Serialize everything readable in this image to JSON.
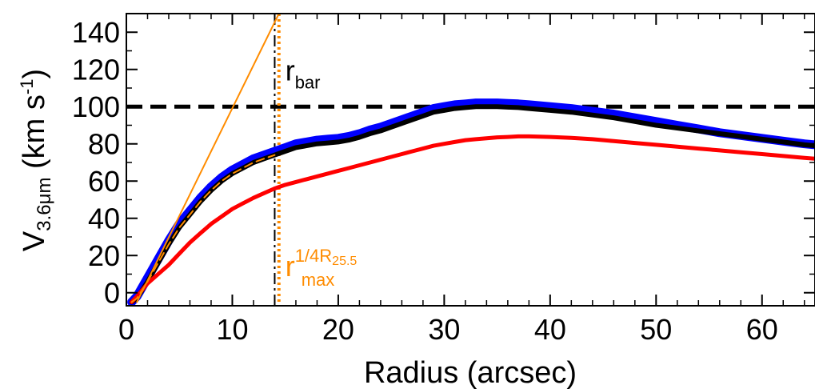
{
  "chart_data": {
    "type": "line",
    "xlabel": "Radius (arcsec)",
    "ylabel": {
      "main": "V",
      "sub": "3.6μm",
      "unit_open": " (km s",
      "unit_sup": "-1",
      "unit_close": ")"
    },
    "xlim": [
      0,
      65
    ],
    "ylim": [
      -7,
      150
    ],
    "xticks": [
      0,
      10,
      20,
      30,
      40,
      50,
      60
    ],
    "yticks": [
      0,
      20,
      40,
      60,
      80,
      100,
      120,
      140
    ],
    "grid": false,
    "series": [
      {
        "color": "#0000ff",
        "style": "solid",
        "points": [
          [
            0.5,
            -5
          ],
          [
            1,
            -2
          ],
          [
            2,
            8
          ],
          [
            3,
            18
          ],
          [
            4,
            28
          ],
          [
            5,
            37
          ],
          [
            6,
            44
          ],
          [
            7,
            51
          ],
          [
            8,
            57
          ],
          [
            9,
            62
          ],
          [
            10,
            66
          ],
          [
            11,
            69
          ],
          [
            12,
            72
          ],
          [
            13,
            74
          ],
          [
            14,
            76
          ],
          [
            15,
            78
          ],
          [
            16,
            80
          ],
          [
            17,
            81
          ],
          [
            18,
            82
          ],
          [
            19,
            82.5
          ],
          [
            20,
            83
          ],
          [
            21,
            84
          ],
          [
            22,
            85.5
          ],
          [
            23,
            87.5
          ],
          [
            24,
            89
          ],
          [
            25,
            91
          ],
          [
            26,
            93
          ],
          [
            27,
            95
          ],
          [
            28,
            97
          ],
          [
            29,
            99
          ],
          [
            30,
            100
          ],
          [
            31,
            101
          ],
          [
            32,
            101.5
          ],
          [
            33,
            102
          ],
          [
            34,
            102
          ],
          [
            35,
            102
          ],
          [
            36,
            101.7
          ],
          [
            37,
            101.5
          ],
          [
            38,
            101
          ],
          [
            40,
            100
          ],
          [
            42,
            99
          ],
          [
            44,
            97.5
          ],
          [
            46,
            96
          ],
          [
            48,
            94
          ],
          [
            50,
            92
          ],
          [
            52,
            90
          ],
          [
            54,
            88
          ],
          [
            56,
            86
          ],
          [
            58,
            84.5
          ],
          [
            60,
            83
          ],
          [
            62,
            81.5
          ],
          [
            64,
            80
          ],
          [
            65,
            79.5
          ]
        ]
      },
      {
        "color": "#000000",
        "style": "solid",
        "points": [
          [
            0.5,
            -5
          ],
          [
            1,
            -3
          ],
          [
            2,
            6
          ],
          [
            3,
            16
          ],
          [
            4,
            26
          ],
          [
            5,
            35
          ],
          [
            6,
            42
          ],
          [
            7,
            49
          ],
          [
            8,
            55
          ],
          [
            9,
            60
          ],
          [
            10,
            64
          ],
          [
            11,
            67
          ],
          [
            12,
            70
          ],
          [
            13,
            72
          ],
          [
            14,
            74
          ],
          [
            15,
            76
          ],
          [
            16,
            78
          ],
          [
            17,
            79
          ],
          [
            18,
            80
          ],
          [
            19,
            80.5
          ],
          [
            20,
            81
          ],
          [
            21,
            82
          ],
          [
            22,
            83.5
          ],
          [
            23,
            85.5
          ],
          [
            24,
            87
          ],
          [
            25,
            89
          ],
          [
            26,
            91
          ],
          [
            27,
            93
          ],
          [
            28,
            95
          ],
          [
            29,
            97
          ],
          [
            30,
            98
          ],
          [
            31,
            99
          ],
          [
            32,
            99.5
          ],
          [
            33,
            100
          ],
          [
            34,
            100
          ],
          [
            35,
            100
          ],
          [
            36,
            99.7
          ],
          [
            37,
            99.5
          ],
          [
            38,
            99
          ],
          [
            40,
            98
          ],
          [
            42,
            97
          ],
          [
            44,
            95.5
          ],
          [
            46,
            94
          ],
          [
            48,
            92
          ],
          [
            50,
            90
          ],
          [
            52,
            88.5
          ],
          [
            54,
            87
          ],
          [
            56,
            85.5
          ],
          [
            58,
            84
          ],
          [
            60,
            82.5
          ],
          [
            62,
            81
          ],
          [
            64,
            79.5
          ],
          [
            65,
            79
          ]
        ]
      },
      {
        "color": "#ff0000",
        "style": "solid",
        "points": [
          [
            0.5,
            -5
          ],
          [
            1,
            -2
          ],
          [
            2,
            5
          ],
          [
            3,
            10
          ],
          [
            4,
            15
          ],
          [
            5,
            21
          ],
          [
            6,
            27
          ],
          [
            7,
            32
          ],
          [
            8,
            37
          ],
          [
            9,
            41
          ],
          [
            10,
            45
          ],
          [
            11,
            48
          ],
          [
            12,
            51
          ],
          [
            13,
            53.5
          ],
          [
            14,
            56
          ],
          [
            15,
            58
          ],
          [
            16,
            59.5
          ],
          [
            17,
            61
          ],
          [
            18,
            62.5
          ],
          [
            19,
            64
          ],
          [
            20,
            65.5
          ],
          [
            21,
            67
          ],
          [
            22,
            68.5
          ],
          [
            23,
            70
          ],
          [
            24,
            71.5
          ],
          [
            25,
            73
          ],
          [
            26,
            74.5
          ],
          [
            27,
            76
          ],
          [
            28,
            77.5
          ],
          [
            29,
            79
          ],
          [
            30,
            80
          ],
          [
            31,
            81
          ],
          [
            32,
            82
          ],
          [
            33,
            82.5
          ],
          [
            34,
            83
          ],
          [
            35,
            83.5
          ],
          [
            36,
            83.7
          ],
          [
            37,
            84
          ],
          [
            38,
            84
          ],
          [
            40,
            83.7
          ],
          [
            42,
            83.2
          ],
          [
            44,
            82.5
          ],
          [
            46,
            81.5
          ],
          [
            48,
            80.5
          ],
          [
            50,
            79.5
          ],
          [
            52,
            78.5
          ],
          [
            54,
            77.5
          ],
          [
            56,
            76.5
          ],
          [
            58,
            75.5
          ],
          [
            60,
            74.5
          ],
          [
            62,
            73.5
          ],
          [
            64,
            72.5
          ],
          [
            65,
            72
          ]
        ]
      },
      {
        "color": "#ff8c00",
        "style": "dashed",
        "points": [
          [
            0.5,
            -5
          ],
          [
            1,
            -3
          ],
          [
            2,
            6
          ],
          [
            3,
            16
          ],
          [
            4,
            26
          ],
          [
            5,
            35
          ],
          [
            6,
            42
          ],
          [
            7,
            49
          ],
          [
            8,
            55
          ],
          [
            9,
            60
          ],
          [
            10,
            64
          ],
          [
            11,
            67
          ],
          [
            12,
            70
          ],
          [
            13,
            72
          ],
          [
            14,
            74
          ]
        ]
      },
      {
        "color": "#ff8c00",
        "style": "solid",
        "points": [
          [
            1,
            -5
          ],
          [
            14.4,
            150
          ]
        ]
      }
    ],
    "reference_lines": [
      {
        "orientation": "horizontal",
        "value": 100,
        "color": "#000000",
        "style": "dashed"
      },
      {
        "orientation": "vertical",
        "value": 14,
        "color": "#000000",
        "style": "dashdot"
      },
      {
        "orientation": "vertical",
        "value": 14.4,
        "color": "#ff8c00",
        "style": "dotted"
      }
    ],
    "annotations": [
      {
        "x": 15,
        "y": 114,
        "main": "r",
        "sub": "bar",
        "color": "#000000"
      },
      {
        "x": 15,
        "y": 9,
        "main": "r",
        "sub": "max",
        "sup": "1/4R",
        "sup_sub": "25.5",
        "color": "#ff8c00"
      }
    ]
  }
}
